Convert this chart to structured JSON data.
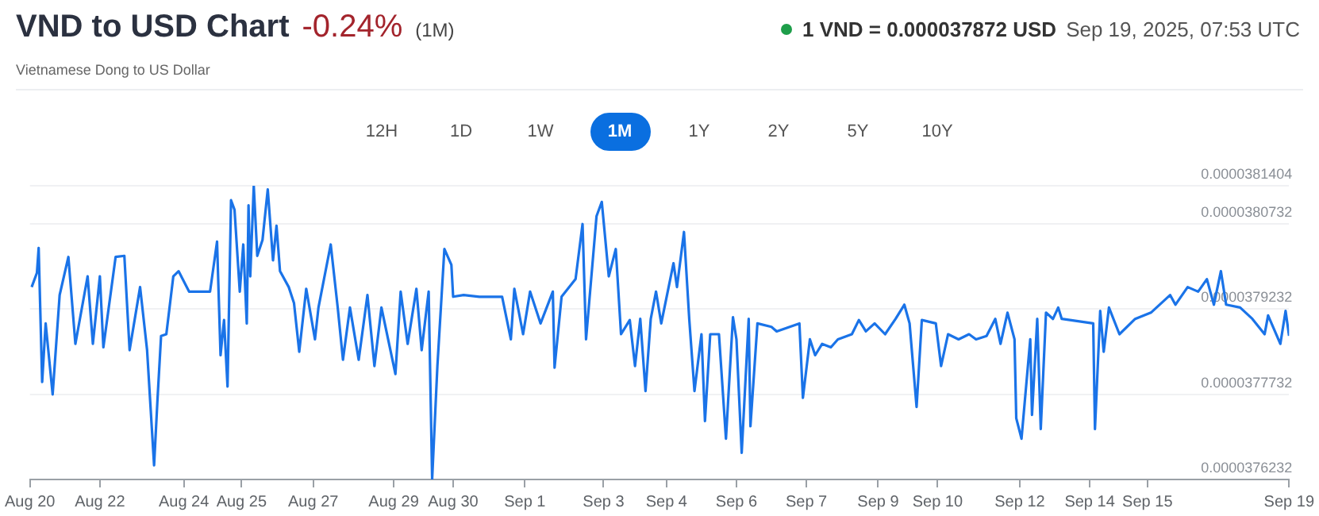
{
  "chart_data": {
    "type": "line",
    "title": "VND to USD Chart",
    "subtitle": "Vietnamese Dong to US Dollar",
    "annotations": [
      "-0.24%",
      "(1M)",
      "1 VND = 0.000037872 USD",
      "Sep 19, 2025, 07:53 UTC",
      "12H",
      "1D",
      "1W",
      "1M",
      "1Y",
      "2Y",
      "5Y",
      "10Y"
    ],
    "xlim": [
      "2025-08-20T08:00",
      "2025-09-19T08:00"
    ],
    "xticks": [
      {
        "value": "2025-08-20T08:00",
        "label": "Aug 20"
      },
      {
        "value": "2025-08-22T00:00",
        "label": "Aug 22"
      },
      {
        "value": "2025-08-24T00:00",
        "label": "Aug 24"
      },
      {
        "value": "2025-08-25T09:00",
        "label": "Aug 25"
      },
      {
        "value": "2025-08-27T02:00",
        "label": "Aug 27"
      },
      {
        "value": "2025-08-29T00:00",
        "label": "Aug 29"
      },
      {
        "value": "2025-08-30T10:00",
        "label": "Aug 30"
      },
      {
        "value": "2025-09-01T03:00",
        "label": "Sep 1"
      },
      {
        "value": "2025-09-03T00:00",
        "label": "Sep 3"
      },
      {
        "value": "2025-09-04T12:00",
        "label": "Sep 4"
      },
      {
        "value": "2025-09-06T04:00",
        "label": "Sep 6"
      },
      {
        "value": "2025-09-07T20:00",
        "label": "Sep 7"
      },
      {
        "value": "2025-09-09T13:00",
        "label": "Sep 9"
      },
      {
        "value": "2025-09-10T23:00",
        "label": "Sep 10"
      },
      {
        "value": "2025-09-12T22:00",
        "label": "Sep 12"
      },
      {
        "value": "2025-09-14T14:00",
        "label": "Sep 14"
      },
      {
        "value": "2025-09-15T23:00",
        "label": "Sep 15"
      },
      {
        "value": "2025-09-19T08:00",
        "label": "Sep 19"
      }
    ],
    "ylim": [
      3.76232e-05,
      3.81404e-05
    ],
    "yticks": [
      {
        "value": 3.76232e-05,
        "label": "0.0000376232"
      },
      {
        "value": 3.77732e-05,
        "label": "0.0000377732"
      },
      {
        "value": 3.79232e-05,
        "label": "0.0000379232"
      },
      {
        "value": 3.80732e-05,
        "label": "0.0000380732"
      },
      {
        "value": 3.81404e-05,
        "label": "0.0000381404"
      }
    ],
    "grid": "y",
    "legend": false,
    "marker": "none",
    "line_style": "solid",
    "series": [
      {
        "color": "#1a73e8",
        "x": [
          "2025-08-20T09:00",
          "2025-08-20T12:00",
          "2025-08-20T13:00",
          "2025-08-20T15:00",
          "2025-08-20T17:00",
          "2025-08-20T21:00",
          "2025-08-21T01:00",
          "2025-08-21T06:00",
          "2025-08-21T10:00",
          "2025-08-21T17:00",
          "2025-08-21T20:00",
          "2025-08-22T00:00",
          "2025-08-22T02:00",
          "2025-08-22T09:00",
          "2025-08-22T14:00",
          "2025-08-22T17:00",
          "2025-08-22T23:00",
          "2025-08-23T03:00",
          "2025-08-23T07:00",
          "2025-08-23T09:00",
          "2025-08-23T11:00",
          "2025-08-23T14:00",
          "2025-08-23T18:00",
          "2025-08-23T21:00",
          "2025-08-24T03:00",
          "2025-08-24T15:00",
          "2025-08-24T19:00",
          "2025-08-24T21:00",
          "2025-08-24T23:00",
          "2025-08-25T01:00",
          "2025-08-25T03:00",
          "2025-08-25T05:00",
          "2025-08-25T08:00",
          "2025-08-25T10:00",
          "2025-08-25T12:00",
          "2025-08-25T13:00",
          "2025-08-25T14:00",
          "2025-08-25T16:00",
          "2025-08-25T18:00",
          "2025-08-25T21:00",
          "2025-08-26T00:00",
          "2025-08-26T03:00",
          "2025-08-26T05:00",
          "2025-08-26T07:00",
          "2025-08-26T12:00",
          "2025-08-26T15:00",
          "2025-08-26T18:00",
          "2025-08-26T22:00",
          "2025-08-27T03:00",
          "2025-08-27T05:00",
          "2025-08-27T12:00",
          "2025-08-27T16:00",
          "2025-08-27T19:00",
          "2025-08-27T23:00",
          "2025-08-28T04:00",
          "2025-08-28T09:00",
          "2025-08-28T13:00",
          "2025-08-28T17:00",
          "2025-08-29T01:00",
          "2025-08-29T04:00",
          "2025-08-29T08:00",
          "2025-08-29T13:00",
          "2025-08-29T16:00",
          "2025-08-29T20:00",
          "2025-08-29T22:00",
          "2025-08-30T01:00",
          "2025-08-30T05:00",
          "2025-08-30T09:00",
          "2025-08-30T10:00",
          "2025-08-30T16:00",
          "2025-08-31T01:00",
          "2025-08-31T14:00",
          "2025-08-31T19:00",
          "2025-08-31T21:00",
          "2025-09-01T02:00",
          "2025-09-01T06:00",
          "2025-09-01T12:00",
          "2025-09-01T19:00",
          "2025-09-01T20:00",
          "2025-09-02T00:00",
          "2025-09-02T08:00",
          "2025-09-02T12:00",
          "2025-09-02T14:00",
          "2025-09-02T20:00",
          "2025-09-02T23:00",
          "2025-09-03T03:00",
          "2025-09-03T07:00",
          "2025-09-03T10:00",
          "2025-09-03T15:00",
          "2025-09-03T18:00",
          "2025-09-03T21:00",
          "2025-09-04T00:00",
          "2025-09-04T03:00",
          "2025-09-04T06:00",
          "2025-09-04T09:00",
          "2025-09-04T16:00",
          "2025-09-04T18:00",
          "2025-09-04T22:00",
          "2025-09-05T01:00",
          "2025-09-05T04:00",
          "2025-09-05T08:00",
          "2025-09-05T10:00",
          "2025-09-05T13:00",
          "2025-09-05T18:00",
          "2025-09-05T22:00",
          "2025-09-06T02:00",
          "2025-09-06T04:00",
          "2025-09-06T07:00",
          "2025-09-06T11:00",
          "2025-09-06T12:00",
          "2025-09-06T16:00",
          "2025-09-07T00:00",
          "2025-09-07T03:00",
          "2025-09-07T16:00",
          "2025-09-07T18:00",
          "2025-09-07T22:00",
          "2025-09-08T01:00",
          "2025-09-08T05:00",
          "2025-09-08T10:00",
          "2025-09-08T14:00",
          "2025-09-08T22:00",
          "2025-09-09T02:00",
          "2025-09-09T06:00",
          "2025-09-09T11:00",
          "2025-09-09T17:00",
          "2025-09-09T23:00",
          "2025-09-10T04:00",
          "2025-09-10T07:00",
          "2025-09-10T11:00",
          "2025-09-10T14:00",
          "2025-09-10T22:00",
          "2025-09-11T01:00",
          "2025-09-11T05:00",
          "2025-09-11T11:00",
          "2025-09-11T17:00",
          "2025-09-11T21:00",
          "2025-09-12T03:00",
          "2025-09-12T08:00",
          "2025-09-12T11:00",
          "2025-09-12T15:00",
          "2025-09-12T19:00",
          "2025-09-12T20:00",
          "2025-09-12T23:00",
          "2025-09-13T04:00",
          "2025-09-13T05:00",
          "2025-09-13T08:00",
          "2025-09-13T10:00",
          "2025-09-13T13:00",
          "2025-09-13T17:00",
          "2025-09-13T20:00",
          "2025-09-13T22:00",
          "2025-09-14T16:00",
          "2025-09-14T17:00",
          "2025-09-14T20:00",
          "2025-09-14T22:00",
          "2025-09-15T01:00",
          "2025-09-15T07:00",
          "2025-09-15T16:00",
          "2025-09-16T01:00",
          "2025-09-16T12:00",
          "2025-09-16T15:00",
          "2025-09-16T22:00",
          "2025-09-17T04:00",
          "2025-09-17T09:00",
          "2025-09-17T13:00",
          "2025-09-17T17:00",
          "2025-09-17T20:00",
          "2025-09-18T04:00",
          "2025-09-18T11:00",
          "2025-09-18T18:00",
          "2025-09-18T20:00",
          "2025-09-19T03:00",
          "2025-09-19T06:00",
          "2025-09-19T08:00"
        ],
        "values": [
          3.7962e-05,
          3.7987e-05,
          3.8031e-05,
          3.7795e-05,
          3.7898e-05,
          3.7773e-05,
          3.7948e-05,
          3.8015e-05,
          3.7862e-05,
          3.7981e-05,
          3.7862e-05,
          3.7981e-05,
          3.7856e-05,
          3.8015e-05,
          3.8017e-05,
          3.7851e-05,
          3.7962e-05,
          3.7851e-05,
          3.7648e-05,
          3.7767e-05,
          3.7876e-05,
          3.7879e-05,
          3.7981e-05,
          3.799e-05,
          3.7954e-05,
          3.7954e-05,
          3.8042e-05,
          3.7842e-05,
          3.7904e-05,
          3.7787e-05,
          3.8115e-05,
          3.8098e-05,
          3.7954e-05,
          3.8037e-05,
          3.7898e-05,
          3.8106e-05,
          3.7981e-05,
          3.814e-05,
          3.8017e-05,
          3.8045e-05,
          3.8134e-05,
          3.8009e-05,
          3.807e-05,
          3.799e-05,
          3.7962e-05,
          3.7934e-05,
          3.7848e-05,
          3.7959e-05,
          3.787e-05,
          3.7926e-05,
          3.8037e-05,
          3.7926e-05,
          3.7834e-05,
          3.7926e-05,
          3.7834e-05,
          3.7948e-05,
          3.7823e-05,
          3.7926e-05,
          3.7809e-05,
          3.7954e-05,
          3.7862e-05,
          3.7959e-05,
          3.7851e-05,
          3.7954e-05,
          3.7624e-05,
          3.7823e-05,
          3.8029e-05,
          3.8001e-05,
          3.7945e-05,
          3.7948e-05,
          3.7945e-05,
          3.7945e-05,
          3.787e-05,
          3.7959e-05,
          3.7879e-05,
          3.7954e-05,
          3.7898e-05,
          3.7954e-05,
          3.782e-05,
          3.7945e-05,
          3.7976e-05,
          3.8073e-05,
          3.787e-05,
          3.8087e-05,
          3.8112e-05,
          3.7981e-05,
          3.8029e-05,
          3.7879e-05,
          3.7904e-05,
          3.7823e-05,
          3.7906e-05,
          3.7779e-05,
          3.7906e-05,
          3.7954e-05,
          3.7898e-05,
          3.8004e-05,
          3.7962e-05,
          3.8059e-05,
          3.7906e-05,
          3.7779e-05,
          3.7879e-05,
          3.7726e-05,
          3.7879e-05,
          3.7879e-05,
          3.7695e-05,
          3.7909e-05,
          3.787e-05,
          3.767e-05,
          3.7906e-05,
          3.7717e-05,
          3.7898e-05,
          3.7892e-05,
          3.7884e-05,
          3.7898e-05,
          3.7767e-05,
          3.787e-05,
          3.7842e-05,
          3.7862e-05,
          3.7856e-05,
          3.787e-05,
          3.7879e-05,
          3.7904e-05,
          3.7884e-05,
          3.7898e-05,
          3.7879e-05,
          3.7906e-05,
          3.7931e-05,
          3.7898e-05,
          3.7751e-05,
          3.7904e-05,
          3.7898e-05,
          3.7823e-05,
          3.7879e-05,
          3.787e-05,
          3.7879e-05,
          3.787e-05,
          3.7876e-05,
          3.7906e-05,
          3.7862e-05,
          3.7917e-05,
          3.787e-05,
          3.7731e-05,
          3.7695e-05,
          3.787e-05,
          3.7737e-05,
          3.7906e-05,
          3.7712e-05,
          3.7917e-05,
          3.7906e-05,
          3.7926e-05,
          3.7906e-05,
          3.7898e-05,
          3.7712e-05,
          3.792e-05,
          3.7848e-05,
          3.7926e-05,
          3.7879e-05,
          3.7906e-05,
          3.7917e-05,
          3.7948e-05,
          3.7931e-05,
          3.7962e-05,
          3.7954e-05,
          3.7976e-05,
          3.7931e-05,
          3.799e-05,
          3.7931e-05,
          3.7926e-05,
          3.7906e-05,
          3.7879e-05,
          3.7912e-05,
          3.7862e-05,
          3.792e-05,
          3.7876e-05
        ]
      }
    ]
  }
}
